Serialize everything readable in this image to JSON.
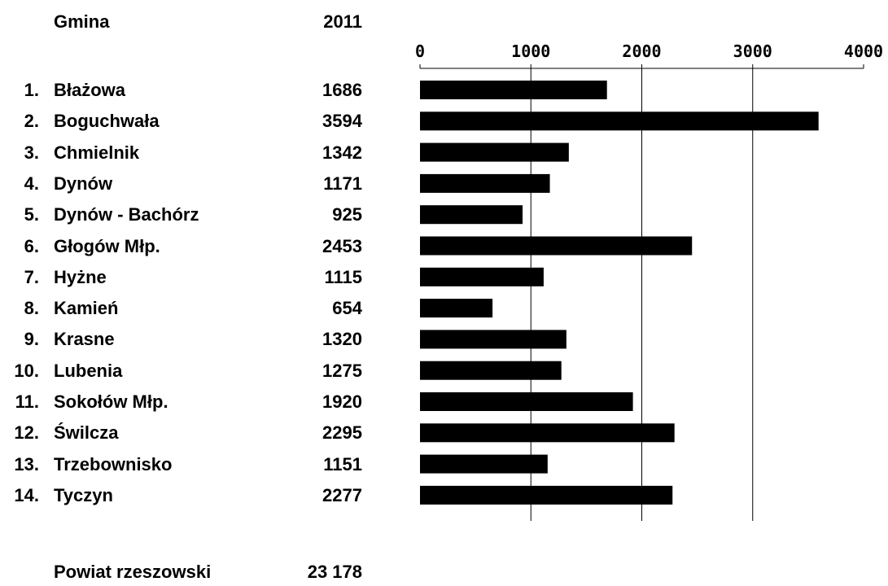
{
  "header": {
    "col_name": "Gmina",
    "col_year": "2011"
  },
  "rows": [
    {
      "rank": "1.",
      "name": "Błażowa",
      "value_label": "1686"
    },
    {
      "rank": "2.",
      "name": "Boguchwała",
      "value_label": "3594"
    },
    {
      "rank": "3.",
      "name": "Chmielnik",
      "value_label": "1342"
    },
    {
      "rank": "4.",
      "name": "Dynów",
      "value_label": "1171"
    },
    {
      "rank": "5.",
      "name": "Dynów - Bachórz",
      "value_label": "925"
    },
    {
      "rank": "6.",
      "name": "Głogów Młp.",
      "value_label": "2453"
    },
    {
      "rank": "7.",
      "name": "Hyżne",
      "value_label": "1115"
    },
    {
      "rank": "8.",
      "name": "Kamień",
      "value_label": "654"
    },
    {
      "rank": "9.",
      "name": "Krasne",
      "value_label": "1320"
    },
    {
      "rank": "10.",
      "name": "Lubenia",
      "value_label": "1275"
    },
    {
      "rank": "11.",
      "name": "Sokołów Młp.",
      "value_label": "1920"
    },
    {
      "rank": "12.",
      "name": "Świlcza",
      "value_label": "2295"
    },
    {
      "rank": "13.",
      "name": "Trzebownisko",
      "value_label": "1151"
    },
    {
      "rank": "14.",
      "name": "Tyczyn",
      "value_label": "2277"
    }
  ],
  "total": {
    "name": "Powiat rzeszowski",
    "value_label": "23 178"
  },
  "chart_data": {
    "type": "bar",
    "orientation": "horizontal",
    "categories": [
      "Błażowa",
      "Boguchwała",
      "Chmielnik",
      "Dynów",
      "Dynów - Bachórz",
      "Głogów Młp.",
      "Hyżne",
      "Kamień",
      "Krasne",
      "Lubenia",
      "Sokołów Młp.",
      "Świlcza",
      "Trzebownisko",
      "Tyczyn"
    ],
    "values": [
      1686,
      3594,
      1342,
      1171,
      925,
      2453,
      1115,
      654,
      1320,
      1275,
      1920,
      2295,
      1151,
      2277
    ],
    "xlim": [
      0,
      4000
    ],
    "xticks": [
      0,
      1000,
      2000,
      3000,
      4000
    ],
    "tick_labels": [
      "0",
      "1000",
      "2000",
      "3000",
      "4000"
    ],
    "axis_position": "top",
    "gridlines": "vertical",
    "bar_color": "#000000"
  }
}
